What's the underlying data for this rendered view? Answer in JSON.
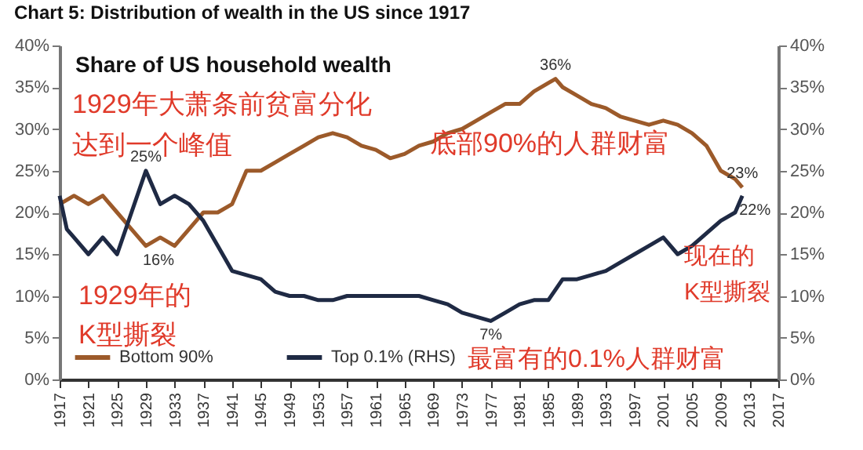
{
  "chart_data": {
    "type": "line",
    "title": "Chart 5: Distribution of wealth in the US since 1917",
    "annotations": [
      "Share of US household wealth",
      "1929年大萧条前贫富分化",
      "达到一个峰值",
      "底部90%的人群财富",
      "1929年的",
      "K型撕裂",
      "现在的",
      "K型撕裂",
      "最富有的0.1%人群财富",
      {
        "text": "25%",
        "x": 1929,
        "y": 25
      },
      {
        "text": "16%",
        "x": 1929,
        "y": 16
      },
      {
        "text": "36%",
        "x": 1986,
        "y": 36
      },
      {
        "text": "23%",
        "x": 2012,
        "y": 23
      },
      {
        "text": "22%",
        "x": 2012,
        "y": 22
      },
      {
        "text": "7%",
        "x": 1977,
        "y": 7
      }
    ],
    "series": [
      {
        "name": "Bottom 90%",
        "color": "#9c5a2a",
        "x": [
          1917,
          1919,
          1921,
          1923,
          1925,
          1927,
          1929,
          1931,
          1933,
          1935,
          1937,
          1939,
          1941,
          1943,
          1945,
          1947,
          1949,
          1951,
          1953,
          1955,
          1957,
          1959,
          1961,
          1963,
          1965,
          1967,
          1969,
          1971,
          1973,
          1975,
          1977,
          1979,
          1981,
          1983,
          1985,
          1986,
          1987,
          1989,
          1991,
          1993,
          1995,
          1997,
          1999,
          2001,
          2003,
          2005,
          2007,
          2009,
          2011,
          2012
        ],
        "values": [
          21,
          22,
          21,
          22,
          20,
          18,
          16,
          17,
          16,
          18,
          20,
          20,
          21,
          25,
          25,
          26,
          27,
          28,
          29,
          29.5,
          29,
          28,
          27.5,
          26.5,
          27,
          28,
          28.5,
          29.5,
          30,
          31,
          32,
          33,
          33,
          34.5,
          35.5,
          36,
          35,
          34,
          33,
          32.5,
          31.5,
          31,
          30.5,
          31,
          30.5,
          29.5,
          28,
          25,
          24,
          23
        ]
      },
      {
        "name": "Top 0.1% (RHS)",
        "color": "#1f2a44",
        "axis": "y2",
        "x": [
          1917,
          1918,
          1919,
          1921,
          1923,
          1925,
          1927,
          1929,
          1931,
          1933,
          1935,
          1937,
          1939,
          1941,
          1943,
          1945,
          1947,
          1949,
          1951,
          1953,
          1955,
          1957,
          1959,
          1961,
          1963,
          1965,
          1967,
          1969,
          1971,
          1973,
          1975,
          1977,
          1979,
          1981,
          1983,
          1985,
          1987,
          1989,
          1991,
          1993,
          1995,
          1997,
          1999,
          2001,
          2003,
          2005,
          2007,
          2009,
          2011,
          2012
        ],
        "values": [
          22,
          18,
          17,
          15,
          17,
          15,
          20,
          25,
          21,
          22,
          21,
          19,
          16,
          13,
          12.5,
          12,
          10.5,
          10,
          10,
          9.5,
          9.5,
          10,
          10,
          10,
          10,
          10,
          10,
          9.5,
          9,
          8,
          7.5,
          7,
          8,
          9,
          9.5,
          9.5,
          12,
          12,
          12.5,
          13,
          14,
          15,
          16,
          17,
          15,
          16,
          17.5,
          19,
          20,
          22
        ]
      }
    ],
    "xlim": [
      1917,
      2017
    ],
    "xticks": [
      1917,
      1921,
      1925,
      1929,
      1933,
      1937,
      1941,
      1945,
      1949,
      1953,
      1957,
      1961,
      1965,
      1969,
      1973,
      1977,
      1981,
      1985,
      1989,
      1993,
      1997,
      2001,
      2005,
      2009,
      2013,
      2017
    ],
    "ylim": [
      0,
      40
    ],
    "yticks": [
      {
        "value": 0,
        "label": "0%"
      },
      {
        "value": 5,
        "label": "5%"
      },
      {
        "value": 10,
        "label": "10%"
      },
      {
        "value": 15,
        "label": "15%"
      },
      {
        "value": 20,
        "label": "20%"
      },
      {
        "value": 25,
        "label": "25%"
      },
      {
        "value": 30,
        "label": "30%"
      },
      {
        "value": 35,
        "label": "35%"
      },
      {
        "value": 40,
        "label": "40%"
      }
    ],
    "y2lim": [
      0,
      40
    ],
    "y2ticks": [
      {
        "value": 0,
        "label": "0%"
      },
      {
        "value": 5,
        "label": "5%"
      },
      {
        "value": 10,
        "label": "10%"
      },
      {
        "value": 15,
        "label": "15%"
      },
      {
        "value": 20,
        "label": "20%"
      },
      {
        "value": 25,
        "label": "25%"
      },
      {
        "value": 30,
        "label": "30%"
      },
      {
        "value": 35,
        "label": "35%"
      },
      {
        "value": 40,
        "label": "40%"
      }
    ],
    "legend": "bottom left",
    "grid": false,
    "line_style": "solid",
    "marker": "none"
  }
}
